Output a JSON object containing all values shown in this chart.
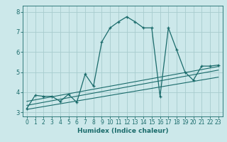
{
  "xlabel": "Humidex (Indice chaleur)",
  "ylabel": "",
  "bg_color": "#cce8ea",
  "grid_color": "#a8ccce",
  "line_color": "#1a6b6b",
  "xlim": [
    -0.5,
    23.5
  ],
  "ylim": [
    2.8,
    8.3
  ],
  "xticks": [
    0,
    1,
    2,
    3,
    4,
    5,
    6,
    7,
    8,
    9,
    10,
    11,
    12,
    13,
    14,
    15,
    16,
    17,
    18,
    19,
    20,
    21,
    22,
    23
  ],
  "yticks": [
    3,
    4,
    5,
    6,
    7,
    8
  ],
  "main_x": [
    0,
    1,
    2,
    3,
    4,
    5,
    6,
    7,
    8,
    9,
    10,
    11,
    12,
    13,
    14,
    15,
    16,
    17,
    18,
    19,
    20,
    21,
    22,
    23
  ],
  "main_y": [
    3.2,
    3.85,
    3.8,
    3.8,
    3.55,
    3.9,
    3.5,
    4.9,
    4.3,
    6.5,
    7.2,
    7.5,
    7.75,
    7.5,
    7.2,
    7.2,
    3.8,
    7.2,
    6.1,
    5.0,
    4.6,
    5.3,
    5.3,
    5.35
  ],
  "trend1_x": [
    0,
    23
  ],
  "trend1_y": [
    3.35,
    5.1
  ],
  "trend2_x": [
    0,
    23
  ],
  "trend2_y": [
    3.55,
    5.28
  ],
  "trend3_x": [
    0,
    23
  ],
  "trend3_y": [
    3.15,
    4.75
  ]
}
